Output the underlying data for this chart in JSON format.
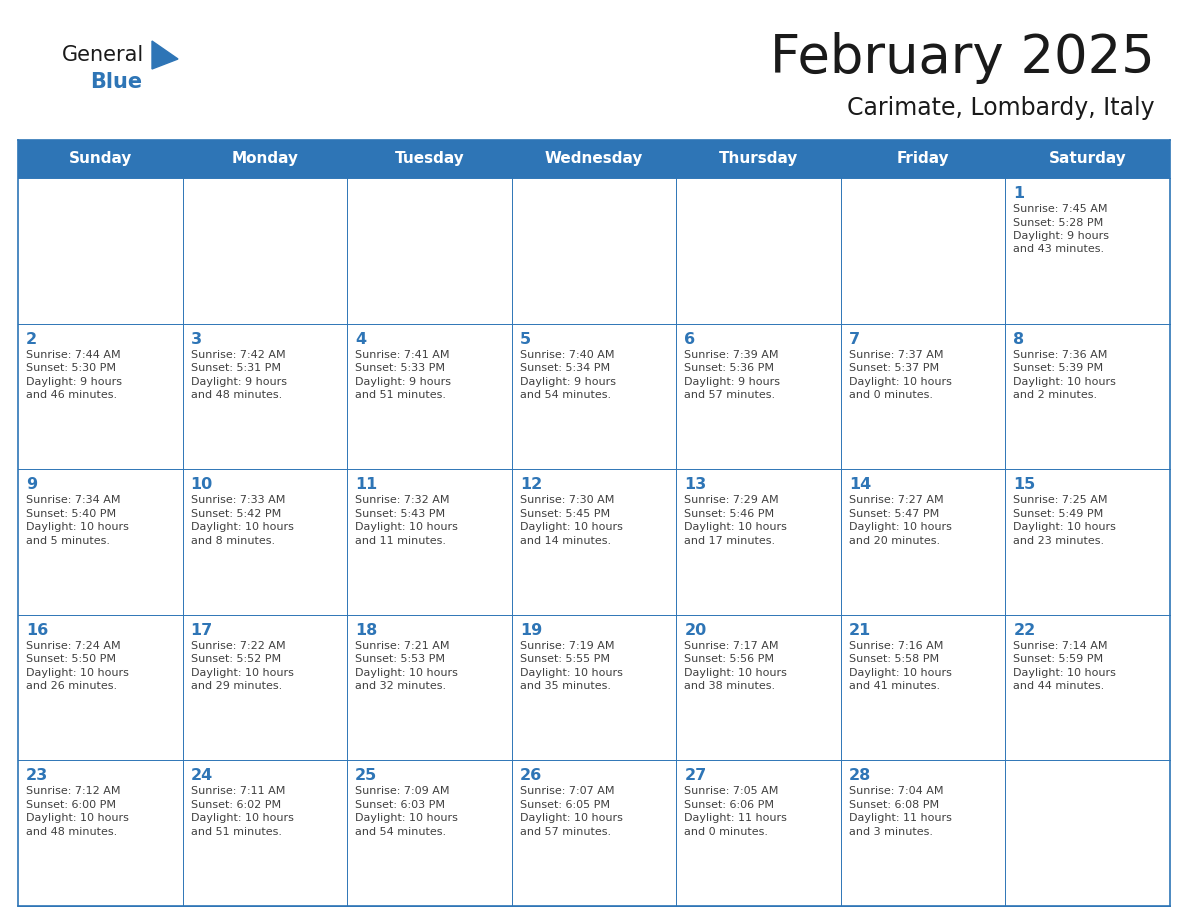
{
  "title": "February 2025",
  "subtitle": "Carimate, Lombardy, Italy",
  "header_bg": "#2E75B6",
  "header_text_color": "#FFFFFF",
  "cell_bg": "#FFFFFF",
  "border_color": "#2E75B6",
  "grid_color": "#2E75B6",
  "days_of_week": [
    "Sunday",
    "Monday",
    "Tuesday",
    "Wednesday",
    "Thursday",
    "Friday",
    "Saturday"
  ],
  "title_color": "#1a1a1a",
  "subtitle_color": "#1a1a1a",
  "day_number_color": "#2E75B6",
  "info_text_color": "#404040",
  "logo_general_color": "#1a1a1a",
  "logo_blue_color": "#2E75B6",
  "logo_triangle_color": "#2E75B6",
  "calendar": [
    [
      null,
      null,
      null,
      null,
      null,
      null,
      {
        "day": "1",
        "sunrise": "7:45 AM",
        "sunset": "5:28 PM",
        "daylight_line1": "Daylight: 9 hours",
        "daylight_line2": "and 43 minutes."
      }
    ],
    [
      {
        "day": "2",
        "sunrise": "7:44 AM",
        "sunset": "5:30 PM",
        "daylight_line1": "Daylight: 9 hours",
        "daylight_line2": "and 46 minutes."
      },
      {
        "day": "3",
        "sunrise": "7:42 AM",
        "sunset": "5:31 PM",
        "daylight_line1": "Daylight: 9 hours",
        "daylight_line2": "and 48 minutes."
      },
      {
        "day": "4",
        "sunrise": "7:41 AM",
        "sunset": "5:33 PM",
        "daylight_line1": "Daylight: 9 hours",
        "daylight_line2": "and 51 minutes."
      },
      {
        "day": "5",
        "sunrise": "7:40 AM",
        "sunset": "5:34 PM",
        "daylight_line1": "Daylight: 9 hours",
        "daylight_line2": "and 54 minutes."
      },
      {
        "day": "6",
        "sunrise": "7:39 AM",
        "sunset": "5:36 PM",
        "daylight_line1": "Daylight: 9 hours",
        "daylight_line2": "and 57 minutes."
      },
      {
        "day": "7",
        "sunrise": "7:37 AM",
        "sunset": "5:37 PM",
        "daylight_line1": "Daylight: 10 hours",
        "daylight_line2": "and 0 minutes."
      },
      {
        "day": "8",
        "sunrise": "7:36 AM",
        "sunset": "5:39 PM",
        "daylight_line1": "Daylight: 10 hours",
        "daylight_line2": "and 2 minutes."
      }
    ],
    [
      {
        "day": "9",
        "sunrise": "7:34 AM",
        "sunset": "5:40 PM",
        "daylight_line1": "Daylight: 10 hours",
        "daylight_line2": "and 5 minutes."
      },
      {
        "day": "10",
        "sunrise": "7:33 AM",
        "sunset": "5:42 PM",
        "daylight_line1": "Daylight: 10 hours",
        "daylight_line2": "and 8 minutes."
      },
      {
        "day": "11",
        "sunrise": "7:32 AM",
        "sunset": "5:43 PM",
        "daylight_line1": "Daylight: 10 hours",
        "daylight_line2": "and 11 minutes."
      },
      {
        "day": "12",
        "sunrise": "7:30 AM",
        "sunset": "5:45 PM",
        "daylight_line1": "Daylight: 10 hours",
        "daylight_line2": "and 14 minutes."
      },
      {
        "day": "13",
        "sunrise": "7:29 AM",
        "sunset": "5:46 PM",
        "daylight_line1": "Daylight: 10 hours",
        "daylight_line2": "and 17 minutes."
      },
      {
        "day": "14",
        "sunrise": "7:27 AM",
        "sunset": "5:47 PM",
        "daylight_line1": "Daylight: 10 hours",
        "daylight_line2": "and 20 minutes."
      },
      {
        "day": "15",
        "sunrise": "7:25 AM",
        "sunset": "5:49 PM",
        "daylight_line1": "Daylight: 10 hours",
        "daylight_line2": "and 23 minutes."
      }
    ],
    [
      {
        "day": "16",
        "sunrise": "7:24 AM",
        "sunset": "5:50 PM",
        "daylight_line1": "Daylight: 10 hours",
        "daylight_line2": "and 26 minutes."
      },
      {
        "day": "17",
        "sunrise": "7:22 AM",
        "sunset": "5:52 PM",
        "daylight_line1": "Daylight: 10 hours",
        "daylight_line2": "and 29 minutes."
      },
      {
        "day": "18",
        "sunrise": "7:21 AM",
        "sunset": "5:53 PM",
        "daylight_line1": "Daylight: 10 hours",
        "daylight_line2": "and 32 minutes."
      },
      {
        "day": "19",
        "sunrise": "7:19 AM",
        "sunset": "5:55 PM",
        "daylight_line1": "Daylight: 10 hours",
        "daylight_line2": "and 35 minutes."
      },
      {
        "day": "20",
        "sunrise": "7:17 AM",
        "sunset": "5:56 PM",
        "daylight_line1": "Daylight: 10 hours",
        "daylight_line2": "and 38 minutes."
      },
      {
        "day": "21",
        "sunrise": "7:16 AM",
        "sunset": "5:58 PM",
        "daylight_line1": "Daylight: 10 hours",
        "daylight_line2": "and 41 minutes."
      },
      {
        "day": "22",
        "sunrise": "7:14 AM",
        "sunset": "5:59 PM",
        "daylight_line1": "Daylight: 10 hours",
        "daylight_line2": "and 44 minutes."
      }
    ],
    [
      {
        "day": "23",
        "sunrise": "7:12 AM",
        "sunset": "6:00 PM",
        "daylight_line1": "Daylight: 10 hours",
        "daylight_line2": "and 48 minutes."
      },
      {
        "day": "24",
        "sunrise": "7:11 AM",
        "sunset": "6:02 PM",
        "daylight_line1": "Daylight: 10 hours",
        "daylight_line2": "and 51 minutes."
      },
      {
        "day": "25",
        "sunrise": "7:09 AM",
        "sunset": "6:03 PM",
        "daylight_line1": "Daylight: 10 hours",
        "daylight_line2": "and 54 minutes."
      },
      {
        "day": "26",
        "sunrise": "7:07 AM",
        "sunset": "6:05 PM",
        "daylight_line1": "Daylight: 10 hours",
        "daylight_line2": "and 57 minutes."
      },
      {
        "day": "27",
        "sunrise": "7:05 AM",
        "sunset": "6:06 PM",
        "daylight_line1": "Daylight: 11 hours",
        "daylight_line2": "and 0 minutes."
      },
      {
        "day": "28",
        "sunrise": "7:04 AM",
        "sunset": "6:08 PM",
        "daylight_line1": "Daylight: 11 hours",
        "daylight_line2": "and 3 minutes."
      },
      null
    ]
  ]
}
